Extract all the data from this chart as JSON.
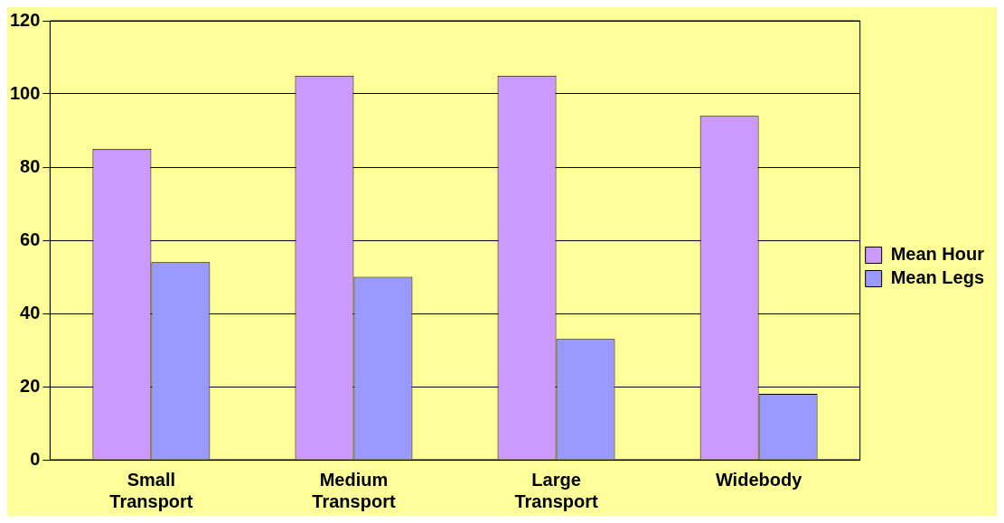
{
  "chart_data": {
    "type": "bar",
    "categories": [
      "Small Transport",
      "Medium Transport",
      "Large Transport",
      "Widebody"
    ],
    "series": [
      {
        "name": "Mean Hour",
        "color": "#cc99ff",
        "values": [
          85,
          105,
          105,
          94
        ]
      },
      {
        "name": "Mean Legs",
        "color": "#9999ff",
        "values": [
          54,
          50,
          33,
          18
        ]
      }
    ],
    "ylim": [
      0,
      120
    ],
    "yticks": [
      0,
      20,
      40,
      60,
      80,
      100,
      120
    ],
    "grid": "y",
    "legend": "right"
  }
}
